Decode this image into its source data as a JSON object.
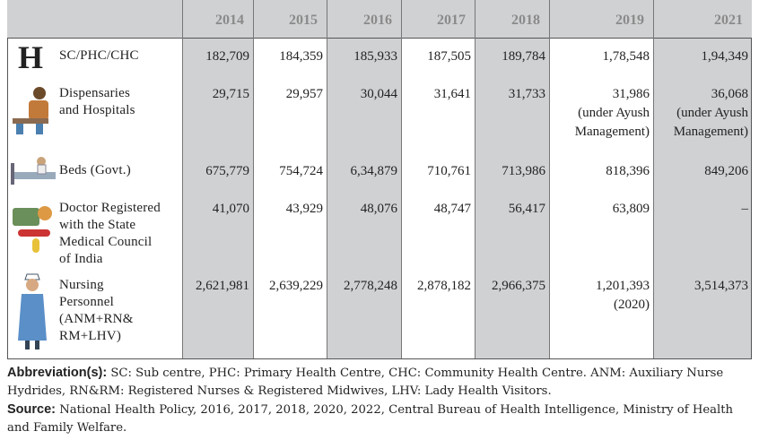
{
  "table": {
    "header": [
      "2014",
      "2015",
      "2016",
      "2017",
      "2018",
      "2019",
      "2021"
    ],
    "rows": [
      {
        "icon": "H",
        "label": [
          "SC/PHC/CHC"
        ],
        "cells": [
          [
            "182,709"
          ],
          [
            "184,359"
          ],
          [
            "185,933"
          ],
          [
            "187,505"
          ],
          [
            "189,784"
          ],
          [
            "1,78,548"
          ],
          [
            "1,94,349"
          ]
        ]
      },
      {
        "label": [
          "Dispensaries",
          "and Hospitals"
        ],
        "cells": [
          [
            "29,715"
          ],
          [
            "29,957"
          ],
          [
            "30,044"
          ],
          [
            "31,641"
          ],
          [
            "31,733"
          ],
          [
            "31,986",
            "(under Ayush",
            "Management)"
          ],
          [
            "36,068",
            "(under Ayush",
            "Management)"
          ]
        ]
      },
      {
        "label": [
          "Beds (Govt.)"
        ],
        "cells": [
          [
            "675,779"
          ],
          [
            "754,724"
          ],
          [
            "6,34,879"
          ],
          [
            "710,761"
          ],
          [
            "713,986"
          ],
          [
            "818,396"
          ],
          [
            "849,206"
          ]
        ]
      },
      {
        "label": [
          "Doctor Registered",
          "with the State",
          "Medical Council",
          "of India"
        ],
        "cells": [
          [
            "41,070"
          ],
          [
            "43,929"
          ],
          [
            "48,076"
          ],
          [
            "48,747"
          ],
          [
            "56,417"
          ],
          [
            "63,809"
          ],
          [
            "–"
          ]
        ]
      },
      {
        "label": [
          "Nursing",
          "Personnel",
          "(ANM+RN&",
          "RM+LHV)"
        ],
        "cells": [
          [
            "2,621,981"
          ],
          [
            "2,639,229"
          ],
          [
            "2,778,248"
          ],
          [
            "2,878,182"
          ],
          [
            "2,966,375"
          ],
          [
            "1,201,393",
            "(2020)"
          ],
          [
            "3,514,373"
          ]
        ]
      }
    ]
  },
  "notes": [
    {
      "head": "Abbreviation(s):",
      "text": "SC: Sub centre, PHC: Primary Health Centre, CHC: Community Health Centre. ANM: Auxiliary Nurse Hydrides, RN&RM: Registered Nurses & Registered Midwives, LHV: Lady Health Visitors."
    },
    {
      "head": "Source:",
      "text": "National Health Policy, 2016, 2017, 2018, 2020, 2022, Central Bureau of Health Intelligence, Ministry of Health and Family Welfare."
    }
  ]
}
